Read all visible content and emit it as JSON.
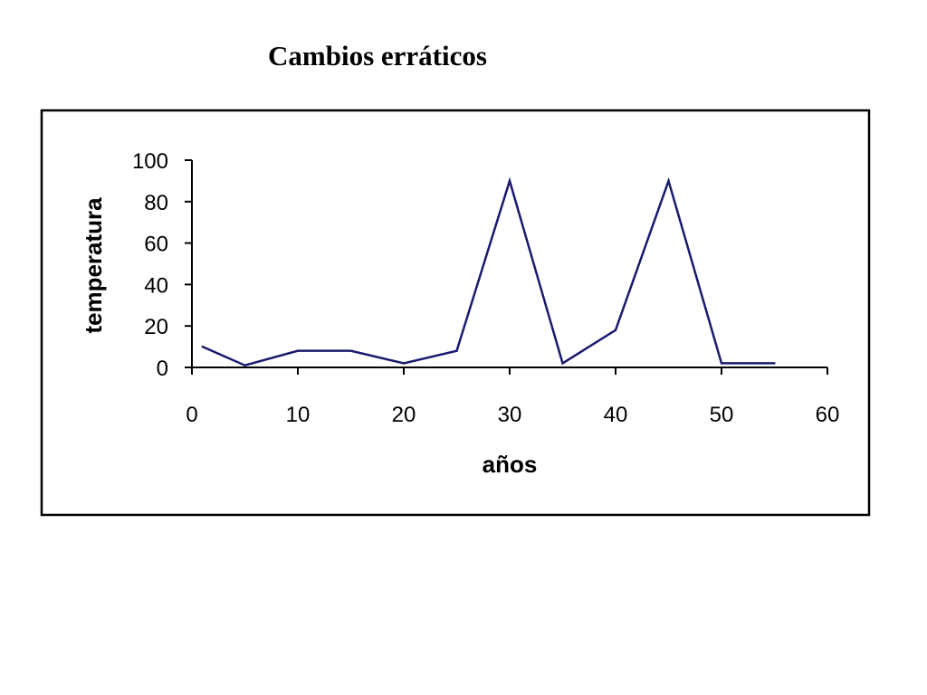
{
  "chart_data": {
    "type": "line",
    "title": "Cambios erráticos",
    "xlabel": "años",
    "ylabel": "temperatura",
    "xlim": [
      0,
      60
    ],
    "ylim": [
      0,
      100
    ],
    "x_ticks": [
      "0",
      "10",
      "20",
      "30",
      "40",
      "50",
      "60"
    ],
    "y_ticks": [
      "0",
      "20",
      "40",
      "60",
      "80",
      "100"
    ],
    "grid": false,
    "legend": "none",
    "line_color": "#1a1a6e",
    "series": [
      {
        "x": [
          1,
          5,
          10,
          15,
          20,
          25,
          30,
          35,
          40,
          45,
          50,
          55
        ],
        "values": [
          10,
          1,
          8,
          8,
          2,
          8,
          90,
          2,
          18,
          90,
          2,
          2
        ]
      }
    ]
  }
}
